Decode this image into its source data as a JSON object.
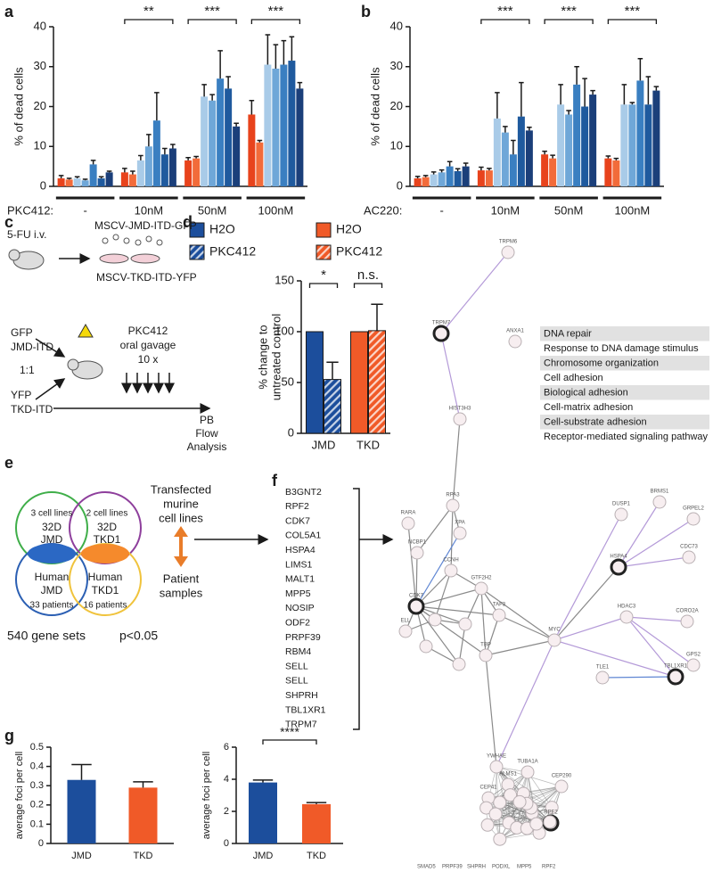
{
  "panel_labels": [
    "a",
    "b",
    "c",
    "d",
    "e",
    "f",
    "g"
  ],
  "chart_data": [
    {
      "type": "bar",
      "ylabel": "% of dead cells",
      "x_label": "PKC412:",
      "categories": [
        "-",
        "10nM",
        "50nM",
        "100nM"
      ],
      "series": [
        {
          "color": "#e8431c",
          "values": [
            2,
            3.5,
            6.5,
            18
          ],
          "errors": [
            0.7,
            1,
            0.7,
            3.5
          ]
        },
        {
          "color": "#f26b3a",
          "values": [
            1.7,
            3,
            7,
            11
          ],
          "errors": [
            0.3,
            0.8,
            0.5,
            0.5
          ]
        },
        {
          "color": "#a9cbe8",
          "values": [
            2,
            6.5,
            22.5,
            30.5
          ],
          "errors": [
            0.4,
            1.2,
            3,
            7.5
          ]
        },
        {
          "color": "#6fa7d8",
          "values": [
            1.5,
            10,
            21.5,
            29.5
          ],
          "errors": [
            0.3,
            3,
            1.5,
            6
          ]
        },
        {
          "color": "#3a7fc1",
          "values": [
            5.5,
            16.5,
            27,
            30.5
          ],
          "errors": [
            1,
            7,
            7,
            6
          ]
        },
        {
          "color": "#1f5a9e",
          "values": [
            2,
            8,
            24.5,
            31.5
          ],
          "errors": [
            0.4,
            1.5,
            3,
            6
          ]
        },
        {
          "color": "#1b3f7a",
          "values": [
            3.5,
            9.5,
            15,
            24.5
          ],
          "errors": [
            0.3,
            1,
            0.8,
            1.5
          ]
        }
      ],
      "ylim": [
        0,
        40
      ],
      "yticks": [
        0,
        10,
        20,
        30,
        40
      ],
      "significance": [
        null,
        "**",
        "***",
        "***"
      ]
    },
    {
      "type": "bar",
      "ylabel": "% of dead cells",
      "x_label": "AC220:",
      "categories": [
        "-",
        "10nM",
        "50nM",
        "100nM"
      ],
      "series": [
        {
          "color": "#e8431c",
          "values": [
            2,
            4,
            8,
            7
          ],
          "errors": [
            0.5,
            0.8,
            0.8,
            0.6
          ]
        },
        {
          "color": "#f26b3a",
          "values": [
            2.3,
            4,
            7,
            6.5
          ],
          "errors": [
            0.4,
            0.5,
            0.8,
            0.5
          ]
        },
        {
          "color": "#a9cbe8",
          "values": [
            3,
            17,
            20.5,
            20.5
          ],
          "errors": [
            0.6,
            6.5,
            5,
            5
          ]
        },
        {
          "color": "#6fa7d8",
          "values": [
            3.5,
            13.5,
            18,
            20.5
          ],
          "errors": [
            0.6,
            1.5,
            1,
            0.5
          ]
        },
        {
          "color": "#3a7fc1",
          "values": [
            5,
            8,
            25.5,
            26.5
          ],
          "errors": [
            1.2,
            3.5,
            4.5,
            5.5
          ]
        },
        {
          "color": "#1f5a9e",
          "values": [
            3.8,
            17.5,
            20,
            20.5
          ],
          "errors": [
            0.6,
            8.5,
            7,
            7
          ]
        },
        {
          "color": "#1b3f7a",
          "values": [
            5,
            14,
            23,
            24
          ],
          "errors": [
            0.8,
            0.8,
            1,
            1
          ]
        }
      ],
      "ylim": [
        0,
        40
      ],
      "yticks": [
        0,
        10,
        20,
        30,
        40
      ],
      "significance": [
        null,
        "***",
        "***",
        "***"
      ]
    },
    {
      "type": "bar",
      "ylabel": [
        "% change to",
        "untreated control"
      ],
      "categories": [
        "JMD",
        "TKD"
      ],
      "series": [
        {
          "name": "H2O",
          "color": "#1c4e9c",
          "hatch": false,
          "values": [
            100,
            null
          ],
          "errors": [
            null,
            null
          ]
        },
        {
          "name": "PKC412",
          "color": "#1c4e9c",
          "hatch": true,
          "values": [
            53,
            null
          ],
          "errors": [
            17,
            null
          ]
        },
        {
          "name": "H2O",
          "color": "#f05a28",
          "hatch": false,
          "values": [
            null,
            100
          ],
          "errors": [
            null,
            null
          ]
        },
        {
          "name": "PKC412",
          "color": "#f05a28",
          "hatch": true,
          "values": [
            null,
            101
          ],
          "errors": [
            null,
            26
          ]
        }
      ],
      "ylim": [
        0,
        150
      ],
      "yticks": [
        0,
        50,
        100,
        150
      ],
      "significance": [
        "*",
        "n.s."
      ],
      "legend": true
    },
    {
      "type": "bar",
      "ylabel": "average foci per cell",
      "categories": [
        "JMD",
        "TKD"
      ],
      "values": [
        0.33,
        0.29
      ],
      "errors": [
        0.08,
        0.03
      ],
      "colors": [
        "#1c4e9c",
        "#f05a28"
      ],
      "ylim": [
        0,
        0.5
      ],
      "yticks": [
        0,
        0.1,
        0.2,
        0.3,
        0.4,
        0.5
      ]
    },
    {
      "type": "bar",
      "ylabel": "average foci per cell",
      "categories": [
        "JMD",
        "TKD"
      ],
      "values": [
        3.8,
        2.45
      ],
      "errors": [
        0.15,
        0.1
      ],
      "colors": [
        "#1c4e9c",
        "#f05a28"
      ],
      "ylim": [
        0,
        6
      ],
      "yticks": [
        0,
        2,
        4,
        6
      ],
      "significance": "****"
    }
  ],
  "diagram_c": {
    "injection": "5-FU i.v.",
    "vector_1": "MSCV-JMD-ITD-GFP",
    "vector_2": "MSCV-TKD-ITD-YFP",
    "marker_1": "GFP",
    "construct_1": "JMD-ITD",
    "ratio": "1:1",
    "marker_2": "YFP",
    "construct_2": "TKD-ITD",
    "treatment": [
      "PKC412",
      "oral gavage",
      "10 x"
    ],
    "readout": [
      "PB",
      "Flow",
      "Analysis"
    ]
  },
  "venn_e": {
    "sets": [
      {
        "count": "3 cell lines",
        "lines": [
          "32D",
          "JMD"
        ]
      },
      {
        "count": "2 cell lines",
        "lines": [
          "32D",
          "TKD1"
        ]
      },
      {
        "lines": [
          "Human",
          "JMD"
        ],
        "count": "33 patients"
      },
      {
        "lines": [
          "Human",
          "TKD1"
        ],
        "count": "16 patients"
      }
    ],
    "side_top": [
      "Transfected",
      "murine",
      "cell lines"
    ],
    "side_bottom": [
      "Patient",
      "samples"
    ],
    "result": "540 gene sets",
    "threshold": "p<0.05"
  },
  "gene_list_f": [
    "B3GNT2",
    "RPF2",
    "CDK7",
    "COL5A1",
    "HSPA4",
    "LIMS1",
    "MALT1",
    "MPP5",
    "NOSIP",
    "ODF2",
    "PRPF39",
    "RBM4",
    "SELL",
    "SELL",
    "SHPRH",
    "TBL1XR1",
    "TRPM7"
  ],
  "go_terms": [
    "DNA repair",
    "Response to DNA damage stimulus",
    "Chromosome organization",
    "Cell adhesion",
    "Biological adhesion",
    "Cell-matrix adhesion",
    "Cell-substrate adhesion",
    "Receptor-mediated signaling pathway"
  ],
  "network": {
    "nodes": [
      "TRPM6",
      "TRPM7",
      "ANXA1",
      "HIST3H3",
      "RPA3",
      "RARA",
      "XPA",
      "NCBP1",
      "CDK7",
      "CCNH",
      "GTF2H2",
      "ELL",
      "TAF3",
      "TBP",
      "MYC",
      "DUSP1",
      "BRMS1",
      "GRPEL2",
      "HSPA4",
      "CDC73",
      "HDAC3",
      "CORO2A",
      "GPS2",
      "TLE1",
      "TBL1XR1",
      "YWHAE",
      "TUBA1A",
      "CEP290",
      "CEP41",
      "ALMS1",
      "RPF2"
    ],
    "footer": [
      "SMAD5",
      "PRPF39",
      "SHPRH",
      "PODXL",
      "MPP5",
      "RPF2"
    ]
  }
}
